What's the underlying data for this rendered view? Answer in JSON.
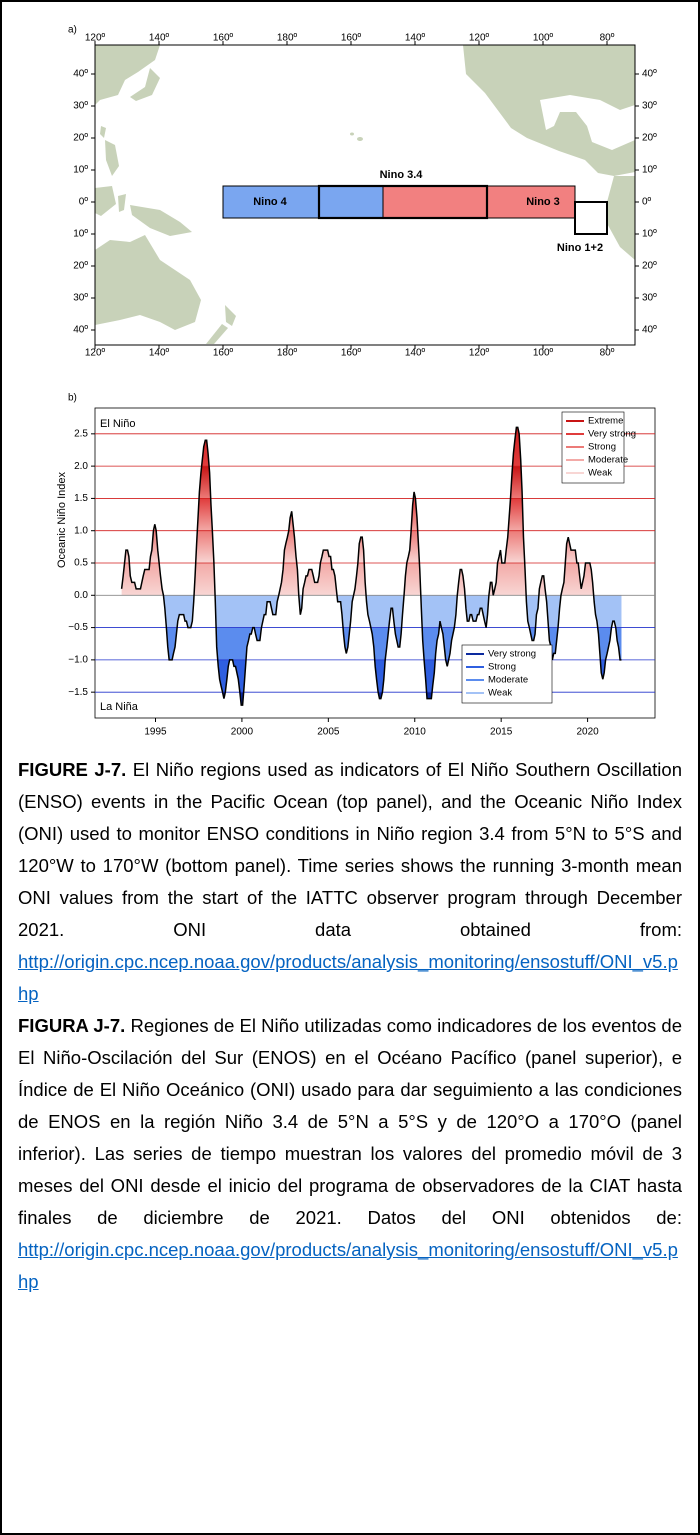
{
  "map": {
    "label": "a)",
    "lon_ticks": [
      "120º",
      "140º",
      "160º",
      "180º",
      "160º",
      "140º",
      "120º",
      "100º",
      "80º"
    ],
    "lat_ticks": [
      "40º",
      "30º",
      "20º",
      "10º",
      "0º",
      "10º",
      "20º",
      "30º",
      "40º"
    ],
    "regions": [
      "Nino 4",
      "Nino 3.4",
      "Nino 3",
      "Nino 1+2"
    ]
  },
  "chart_data": {
    "type": "line",
    "panel_label": "b)",
    "ylabel": "Oceanic Niño Index",
    "annotations": [
      "El Niño",
      "La Niña"
    ],
    "xlim": [
      1991.5,
      2023.9
    ],
    "xticks": [
      1995,
      2000,
      2005,
      2010,
      2015,
      2020
    ],
    "ylim": [
      -1.9,
      2.9
    ],
    "yticks": [
      2.5,
      {
        "value": 2,
        "label": "2.0"
      },
      1.5,
      {
        "value": 1,
        "label": "1.0"
      },
      0.5,
      {
        "value": 0,
        "label": "0.0"
      },
      {
        "value": -0.5,
        "label": "−0.5"
      },
      {
        "value": -1,
        "label": "−1.0"
      },
      {
        "value": -1.5,
        "label": "−1.5"
      }
    ],
    "line_color": "#000000",
    "el_nino_thresholds": [
      0.5,
      1,
      1.5,
      2,
      2.5
    ],
    "el_nino_line_color": "#d21e1e",
    "la_nina_thresholds": [
      -0.5,
      -1,
      -1.5
    ],
    "la_nina_line_color": "#2233cc",
    "el_nino_classes": [
      {
        "name": "Extreme",
        "color": "#c81414"
      },
      {
        "name": "Very strong",
        "color": "#e03c3c"
      },
      {
        "name": "Strong",
        "color": "#ec7b78"
      },
      {
        "name": "Moderate",
        "color": "#f3aaa7"
      },
      {
        "name": "Weak",
        "color": "#f8d6d4"
      }
    ],
    "la_nina_classes": [
      {
        "name": "Very strong",
        "color": "#0c2a9e"
      },
      {
        "name": "Strong",
        "color": "#2f5fe0"
      },
      {
        "name": "Moderate",
        "color": "#5b8cee"
      },
      {
        "name": "Weak",
        "color": "#a3c2f6"
      }
    ],
    "x": [
      1993.04,
      1993.13,
      1993.21,
      1993.29,
      1993.38,
      1993.46,
      1993.54,
      1993.63,
      1993.71,
      1993.79,
      1993.88,
      1993.96,
      1994.04,
      1994.13,
      1994.21,
      1994.29,
      1994.38,
      1994.46,
      1994.54,
      1994.63,
      1994.71,
      1994.79,
      1994.88,
      1994.96,
      1995.04,
      1995.13,
      1995.21,
      1995.29,
      1995.38,
      1995.46,
      1995.54,
      1995.63,
      1995.71,
      1995.79,
      1995.88,
      1995.96,
      1996.04,
      1996.13,
      1996.21,
      1996.29,
      1996.38,
      1996.46,
      1996.54,
      1996.63,
      1996.71,
      1996.79,
      1996.88,
      1996.96,
      1997.04,
      1997.13,
      1997.21,
      1997.29,
      1997.38,
      1997.46,
      1997.54,
      1997.63,
      1997.71,
      1997.79,
      1997.88,
      1997.96,
      1998.04,
      1998.13,
      1998.21,
      1998.29,
      1998.38,
      1998.46,
      1998.54,
      1998.63,
      1998.71,
      1998.79,
      1998.88,
      1998.96,
      1999.04,
      1999.13,
      1999.21,
      1999.29,
      1999.38,
      1999.46,
      1999.54,
      1999.63,
      1999.71,
      1999.79,
      1999.88,
      1999.96,
      2000.04,
      2000.13,
      2000.21,
      2000.29,
      2000.38,
      2000.46,
      2000.54,
      2000.63,
      2000.71,
      2000.79,
      2000.88,
      2000.96,
      2001.04,
      2001.13,
      2001.21,
      2001.29,
      2001.38,
      2001.46,
      2001.54,
      2001.63,
      2001.71,
      2001.79,
      2001.88,
      2001.96,
      2002.04,
      2002.13,
      2002.21,
      2002.29,
      2002.38,
      2002.46,
      2002.54,
      2002.63,
      2002.71,
      2002.79,
      2002.88,
      2002.96,
      2003.04,
      2003.13,
      2003.21,
      2003.29,
      2003.38,
      2003.46,
      2003.54,
      2003.63,
      2003.71,
      2003.79,
      2003.88,
      2003.96,
      2004.04,
      2004.13,
      2004.21,
      2004.29,
      2004.38,
      2004.46,
      2004.54,
      2004.63,
      2004.71,
      2004.79,
      2004.88,
      2004.96,
      2005.04,
      2005.13,
      2005.21,
      2005.29,
      2005.38,
      2005.46,
      2005.54,
      2005.63,
      2005.71,
      2005.79,
      2005.88,
      2005.96,
      2006.04,
      2006.13,
      2006.21,
      2006.29,
      2006.38,
      2006.46,
      2006.54,
      2006.63,
      2006.71,
      2006.79,
      2006.88,
      2006.96,
      2007.04,
      2007.13,
      2007.21,
      2007.29,
      2007.38,
      2007.46,
      2007.54,
      2007.63,
      2007.71,
      2007.79,
      2007.88,
      2007.96,
      2008.04,
      2008.13,
      2008.21,
      2008.29,
      2008.38,
      2008.46,
      2008.54,
      2008.63,
      2008.71,
      2008.79,
      2008.88,
      2008.96,
      2009.04,
      2009.13,
      2009.21,
      2009.29,
      2009.38,
      2009.46,
      2009.54,
      2009.63,
      2009.71,
      2009.79,
      2009.88,
      2009.96,
      2010.04,
      2010.13,
      2010.21,
      2010.29,
      2010.38,
      2010.46,
      2010.54,
      2010.63,
      2010.71,
      2010.79,
      2010.88,
      2010.96,
      2011.04,
      2011.13,
      2011.21,
      2011.29,
      2011.38,
      2011.46,
      2011.54,
      2011.63,
      2011.71,
      2011.79,
      2011.88,
      2011.96,
      2012.04,
      2012.13,
      2012.21,
      2012.29,
      2012.38,
      2012.46,
      2012.54,
      2012.63,
      2012.71,
      2012.79,
      2012.88,
      2012.96,
      2013.04,
      2013.13,
      2013.21,
      2013.29,
      2013.38,
      2013.46,
      2013.54,
      2013.63,
      2013.71,
      2013.79,
      2013.88,
      2013.96,
      2014.04,
      2014.13,
      2014.21,
      2014.29,
      2014.38,
      2014.46,
      2014.54,
      2014.63,
      2014.71,
      2014.79,
      2014.88,
      2014.96,
      2015.04,
      2015.13,
      2015.21,
      2015.29,
      2015.38,
      2015.46,
      2015.54,
      2015.63,
      2015.71,
      2015.79,
      2015.88,
      2015.96,
      2016.04,
      2016.13,
      2016.21,
      2016.29,
      2016.38,
      2016.46,
      2016.54,
      2016.63,
      2016.71,
      2016.79,
      2016.88,
      2016.96,
      2017.04,
      2017.13,
      2017.21,
      2017.29,
      2017.38,
      2017.46,
      2017.54,
      2017.63,
      2017.71,
      2017.79,
      2017.88,
      2017.96,
      2018.04,
      2018.13,
      2018.21,
      2018.29,
      2018.38,
      2018.46,
      2018.54,
      2018.63,
      2018.71,
      2018.79,
      2018.88,
      2018.96,
      2019.04,
      2019.13,
      2019.21,
      2019.29,
      2019.38,
      2019.46,
      2019.54,
      2019.63,
      2019.71,
      2019.79,
      2019.88,
      2019.96,
      2020.04,
      2020.13,
      2020.21,
      2020.29,
      2020.38,
      2020.46,
      2020.54,
      2020.63,
      2020.71,
      2020.79,
      2020.88,
      2020.96,
      2021.04,
      2021.13,
      2021.21,
      2021.29,
      2021.38,
      2021.46,
      2021.54,
      2021.63,
      2021.71,
      2021.79,
      2021.88,
      2021.96
    ],
    "values": [
      0.1,
      0.3,
      0.5,
      0.7,
      0.7,
      0.6,
      0.3,
      0.2,
      0.2,
      0.2,
      0.1,
      0.1,
      0.1,
      0.1,
      0.2,
      0.3,
      0.4,
      0.4,
      0.4,
      0.4,
      0.6,
      0.7,
      1.0,
      1.1,
      1.0,
      0.7,
      0.5,
      0.3,
      0.1,
      0.0,
      -0.2,
      -0.5,
      -0.8,
      -1.0,
      -1.0,
      -1.0,
      -0.9,
      -0.8,
      -0.6,
      -0.4,
      -0.3,
      -0.3,
      -0.3,
      -0.3,
      -0.4,
      -0.4,
      -0.5,
      -0.5,
      -0.5,
      -0.4,
      -0.1,
      0.3,
      0.8,
      1.2,
      1.6,
      1.9,
      2.1,
      2.3,
      2.4,
      2.4,
      2.2,
      1.9,
      1.4,
      1.0,
      0.5,
      -0.1,
      -0.8,
      -1.1,
      -1.3,
      -1.4,
      -1.5,
      -1.6,
      -1.5,
      -1.3,
      -1.1,
      -1.0,
      -1.0,
      -1.0,
      -1.1,
      -1.1,
      -1.2,
      -1.3,
      -1.5,
      -1.7,
      -1.7,
      -1.4,
      -1.1,
      -0.8,
      -0.7,
      -0.6,
      -0.6,
      -0.5,
      -0.5,
      -0.6,
      -0.7,
      -0.7,
      -0.7,
      -0.5,
      -0.4,
      -0.3,
      -0.3,
      -0.1,
      -0.1,
      -0.1,
      -0.2,
      -0.3,
      -0.3,
      -0.3,
      -0.1,
      0.0,
      0.1,
      0.2,
      0.4,
      0.7,
      0.8,
      0.9,
      1.0,
      1.2,
      1.3,
      1.1,
      0.9,
      0.6,
      0.4,
      0.0,
      -0.3,
      -0.2,
      0.1,
      0.2,
      0.3,
      0.3,
      0.4,
      0.4,
      0.4,
      0.3,
      0.2,
      0.2,
      0.2,
      0.3,
      0.5,
      0.6,
      0.7,
      0.7,
      0.7,
      0.7,
      0.6,
      0.6,
      0.4,
      0.4,
      0.3,
      0.1,
      -0.1,
      -0.1,
      -0.1,
      -0.3,
      -0.6,
      -0.8,
      -0.9,
      -0.8,
      -0.6,
      -0.4,
      -0.1,
      0.0,
      0.1,
      0.3,
      0.5,
      0.8,
      0.9,
      0.9,
      0.7,
      0.2,
      -0.1,
      -0.3,
      -0.4,
      -0.5,
      -0.6,
      -0.8,
      -1.1,
      -1.3,
      -1.5,
      -1.6,
      -1.6,
      -1.5,
      -1.3,
      -1.0,
      -0.8,
      -0.6,
      -0.4,
      -0.2,
      -0.2,
      -0.4,
      -0.6,
      -0.7,
      -0.8,
      -0.8,
      -0.6,
      -0.3,
      0.0,
      0.3,
      0.5,
      0.6,
      0.7,
      1.0,
      1.4,
      1.6,
      1.5,
      1.2,
      0.8,
      0.4,
      -0.2,
      -0.7,
      -1.0,
      -1.3,
      -1.6,
      -1.6,
      -1.6,
      -1.6,
      -1.4,
      -1.2,
      -0.9,
      -0.7,
      -0.6,
      -0.4,
      -0.5,
      -0.6,
      -0.8,
      -1.0,
      -1.1,
      -1.0,
      -0.9,
      -0.7,
      -0.6,
      -0.5,
      -0.3,
      0.0,
      0.2,
      0.4,
      0.4,
      0.3,
      0.1,
      -0.2,
      -0.4,
      -0.4,
      -0.3,
      -0.3,
      -0.4,
      -0.4,
      -0.4,
      -0.3,
      -0.3,
      -0.2,
      -0.2,
      -0.3,
      -0.4,
      -0.5,
      -0.3,
      0.0,
      0.2,
      0.2,
      0.0,
      0.1,
      0.2,
      0.5,
      0.6,
      0.7,
      0.5,
      0.5,
      0.5,
      0.7,
      0.9,
      1.2,
      1.5,
      1.9,
      2.2,
      2.4,
      2.6,
      2.6,
      2.5,
      2.1,
      1.6,
      0.9,
      0.4,
      -0.1,
      -0.4,
      -0.5,
      -0.6,
      -0.7,
      -0.7,
      -0.6,
      -0.3,
      -0.2,
      0.1,
      0.2,
      0.3,
      0.3,
      0.1,
      -0.1,
      -0.4,
      -0.7,
      -0.8,
      -1.0,
      -0.9,
      -0.9,
      -0.7,
      -0.5,
      -0.2,
      0.0,
      0.1,
      0.2,
      0.5,
      0.8,
      0.9,
      0.8,
      0.7,
      0.7,
      0.7,
      0.7,
      0.5,
      0.5,
      0.3,
      0.1,
      0.2,
      0.3,
      0.5,
      0.5,
      0.5,
      0.5,
      0.4,
      0.2,
      -0.1,
      -0.3,
      -0.4,
      -0.6,
      -0.9,
      -1.2,
      -1.3,
      -1.2,
      -1.0,
      -0.9,
      -0.8,
      -0.7,
      -0.5,
      -0.4,
      -0.4,
      -0.5,
      -0.7,
      -0.8,
      -1.0,
      -1.0
    ]
  },
  "caption": {
    "en": {
      "label": "FIGURE J-7.",
      "text": "El Niño regions used as indicators of El Niño Southern Oscillation (ENSO) events in the Pacific Ocean (top panel), and the Oceanic Niño Index (ONI) used to monitor ENSO conditions in Niño region 3.4 from 5°N to 5°S and 120°W to 170°W (bottom panel). Time series shows the running 3-month mean ONI values from the start of the IATTC observer program through December 2021. ONI data obtained from:",
      "link": "http://origin.cpc.ncep.noaa.gov/products/analysis_monitoring/ensostuff/ONI_v5.php"
    },
    "es": {
      "label": "FIGURA J-7.",
      "text": "Regiones de El Niño utilizadas como indicadores de los eventos de El Niño-Oscilación del Sur (ENOS) en el Océano Pacífico (panel superior), e Índice de El Niño Oceánico (ONI) usado para dar seguimiento a las condiciones de ENOS en la región Niño 3.4 de 5°N a 5°S y de 120°O a 170°O (panel inferior). Las series de tiempo muestran los valores del promedio móvil de 3 meses del ONI desde el inicio del programa de observadores de la CIAT hasta finales de diciembre de 2021. Datos del ONI obtenidos de:",
      "link": "http://origin.cpc.ncep.noaa.gov/products/analysis_monitoring/ensostuff/ONI_v5.php"
    }
  }
}
